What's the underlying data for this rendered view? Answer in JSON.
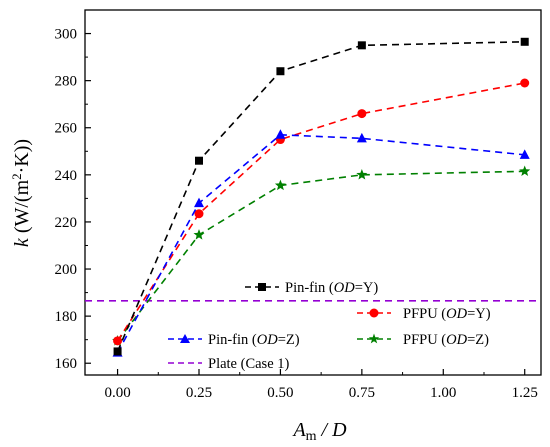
{
  "chart_data": {
    "type": "line",
    "xlabel": {
      "main": "A",
      "sub": "m",
      "rest": " / D"
    },
    "ylabel": {
      "pre": "k",
      "mid": " (W/(m",
      "sup": "2",
      "post": "·K))"
    },
    "xlim": [
      -0.1,
      1.3
    ],
    "ylim": [
      155,
      310
    ],
    "xticks": [
      0.0,
      0.25,
      0.5,
      0.75,
      1.0,
      1.25
    ],
    "xtick_labels": [
      "0.00",
      "0.25",
      "0.50",
      "0.75",
      "1.00",
      "1.25"
    ],
    "yticks": [
      160,
      180,
      200,
      220,
      240,
      260,
      280,
      300
    ],
    "ytick_labels": [
      "160",
      "180",
      "200",
      "220",
      "240",
      "260",
      "280",
      "300"
    ],
    "legend_position": "bottom-right",
    "series": [
      {
        "name": "Pin-fin (OD=Y)",
        "legend": {
          "a": "Pin-fin (",
          "i": "OD",
          "b": "=Y)"
        },
        "color": "#000000",
        "marker": "square",
        "x": [
          0.0,
          0.25,
          0.5,
          0.75,
          1.25
        ],
        "y": [
          165.0,
          246.0,
          284.0,
          295.0,
          296.5
        ]
      },
      {
        "name": "PFPU (OD=Y)",
        "legend": {
          "a": "PFPU (",
          "i": "OD",
          "b": "=Y)"
        },
        "color": "#ff0000",
        "marker": "circle",
        "x": [
          0.0,
          0.25,
          0.5,
          0.75,
          1.25
        ],
        "y": [
          169.5,
          223.5,
          255.0,
          266.0,
          279.0
        ]
      },
      {
        "name": "Pin-fin (OD=Z)",
        "legend": {
          "a": "Pin-fin (",
          "i": "OD",
          "b": "=Z)"
        },
        "color": "#0000ff",
        "marker": "triangle",
        "x": [
          0.0,
          0.25,
          0.5,
          0.75,
          1.25
        ],
        "y": [
          164.5,
          228.0,
          257.0,
          255.5,
          248.5
        ]
      },
      {
        "name": "PFPU (OD=Z)",
        "legend": {
          "a": "PFPU (",
          "i": "OD",
          "b": "=Z)"
        },
        "color": "#008000",
        "marker": "star",
        "x": [
          0.0,
          0.25,
          0.5,
          0.75,
          1.25
        ],
        "y": [
          169.5,
          214.5,
          235.5,
          240.0,
          241.5
        ]
      },
      {
        "name": "Plate (Case 1)",
        "legend": {
          "a": "Plate (Case 1)",
          "i": "",
          "b": ""
        },
        "color": "#9400d3",
        "marker": "none",
        "x": [
          -0.1,
          1.3
        ],
        "y": [
          186.5,
          186.5
        ]
      }
    ]
  }
}
